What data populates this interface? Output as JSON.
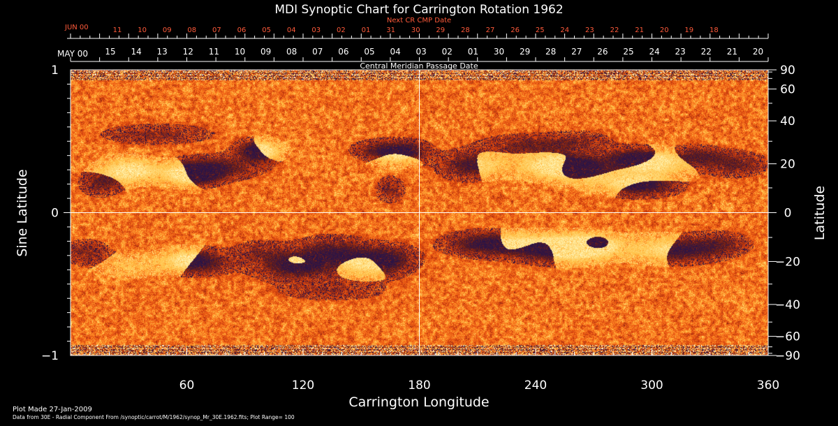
{
  "chart_data": {
    "type": "heatmap",
    "title": "MDI Synoptic Chart for Carrington Rotation 1962",
    "xlabel": "Carrington Longitude",
    "ylabel_left": "Sine Latitude",
    "ylabel_right": "Latitude",
    "xlim": [
      0,
      360
    ],
    "ylim": [
      -1,
      1
    ],
    "x_ticks": [
      60,
      120,
      180,
      240,
      300,
      360
    ],
    "x_minor_step": 10,
    "y_left_ticks": [
      {
        "v": 1,
        "label": "1"
      },
      {
        "v": 0,
        "label": "0"
      },
      {
        "v": -1,
        "label": "−1"
      }
    ],
    "y_left_minor_step": 0.1,
    "y_right_ticks": [
      {
        "deg": 90,
        "label": "90"
      },
      {
        "deg": 60,
        "label": "60"
      },
      {
        "deg": 40,
        "label": "40"
      },
      {
        "deg": 20,
        "label": "20"
      },
      {
        "deg": 0,
        "label": "0"
      },
      {
        "deg": -20,
        "label": "−20"
      },
      {
        "deg": -40,
        "label": "−40"
      },
      {
        "deg": -60,
        "label": "−60"
      },
      {
        "deg": -90,
        "label": "−90"
      }
    ],
    "y_right_minor_deg": [
      80,
      70,
      50,
      30,
      10,
      -10,
      -30,
      -50,
      -70,
      -80
    ],
    "reference_lines": {
      "x": 180,
      "y": 0
    },
    "cmp_axis": {
      "title": "Central Meridian Passage Date",
      "start_label": "MAY 00",
      "dates": [
        "15",
        "14",
        "13",
        "12",
        "11",
        "10",
        "09",
        "08",
        "07",
        "06",
        "05",
        "04",
        "03",
        "02",
        "01",
        "30",
        "29",
        "28",
        "27",
        "26",
        "25",
        "24",
        "23",
        "22",
        "21",
        "20"
      ],
      "longitudes": [
        345,
        330,
        315,
        300,
        285,
        270,
        255,
        240,
        225,
        210,
        195,
        180,
        165,
        150,
        135,
        120,
        105,
        90,
        75,
        60,
        45,
        30,
        15,
        0
      ]
    },
    "next_cr_axis": {
      "title": "Next CR CMP Date",
      "start_label": "JUN 00",
      "dates": [
        "11",
        "10",
        "09",
        "08",
        "07",
        "06",
        "05",
        "04",
        "03",
        "02",
        "01",
        "31",
        "30",
        "29",
        "28",
        "27",
        "26",
        "25",
        "24",
        "23",
        "22",
        "21",
        "20",
        "19",
        "18"
      ]
    },
    "colorscale": {
      "plot_range": 100,
      "stops": [
        "#180a4a",
        "#2a1448",
        "#6a1e16",
        "#c83a0e",
        "#ee5c14",
        "#ff8a24",
        "#ffc34a",
        "#fff0a8",
        "#ffffff"
      ]
    },
    "active_regions": [
      {
        "lon": 262,
        "lat": 0.32,
        "w": 24,
        "h": 0.12,
        "pol": -1,
        "s": 1.0
      },
      {
        "lon": 247,
        "lat": 0.33,
        "w": 26,
        "h": 0.14,
        "pol": 1,
        "s": 0.9
      },
      {
        "lon": 291,
        "lat": 0.38,
        "w": 22,
        "h": 0.1,
        "pol": -1,
        "s": 0.9
      },
      {
        "lon": 303,
        "lat": 0.34,
        "w": 24,
        "h": 0.14,
        "pol": 1,
        "s": 0.8
      },
      {
        "lon": 283,
        "lat": 0.22,
        "w": 30,
        "h": 0.12,
        "pol": 1,
        "s": 0.6
      },
      {
        "lon": 297,
        "lat": 0.18,
        "w": 24,
        "h": 0.1,
        "pol": -1,
        "s": 0.7
      },
      {
        "lon": 235,
        "lat": 0.48,
        "w": 30,
        "h": 0.1,
        "pol": -1,
        "s": 0.6
      },
      {
        "lon": 262,
        "lat": 0.5,
        "w": 24,
        "h": 0.1,
        "pol": -1,
        "s": 0.5
      },
      {
        "lon": 325,
        "lat": 0.4,
        "w": 18,
        "h": 0.1,
        "pol": -1,
        "s": 0.6
      },
      {
        "lon": 343,
        "lat": 0.34,
        "w": 22,
        "h": 0.12,
        "pol": -1,
        "s": 0.7
      },
      {
        "lon": 203,
        "lat": 0.33,
        "w": 20,
        "h": 0.14,
        "pol": -1,
        "s": 0.6
      },
      {
        "lon": 215,
        "lat": 0.34,
        "w": 20,
        "h": 0.14,
        "pol": 1,
        "s": 0.5
      },
      {
        "lon": 158,
        "lat": 0.44,
        "w": 18,
        "h": 0.1,
        "pol": -1,
        "s": 0.6
      },
      {
        "lon": 168,
        "lat": 0.4,
        "w": 18,
        "h": 0.12,
        "pol": 1,
        "s": 0.6
      },
      {
        "lon": 175,
        "lat": 0.44,
        "w": 16,
        "h": 0.1,
        "pol": -1,
        "s": 0.6
      },
      {
        "lon": 100,
        "lat": 0.44,
        "w": 16,
        "h": 0.1,
        "pol": 1,
        "s": 0.7
      },
      {
        "lon": 95,
        "lat": 0.43,
        "w": 14,
        "h": 0.1,
        "pol": -1,
        "s": 0.7
      },
      {
        "lon": 78,
        "lat": 0.32,
        "w": 30,
        "h": 0.12,
        "pol": -1,
        "s": 0.7
      },
      {
        "lon": 67,
        "lat": 0.27,
        "w": 18,
        "h": 0.1,
        "pol": -1,
        "s": 0.8
      },
      {
        "lon": 58,
        "lat": 0.27,
        "w": 20,
        "h": 0.12,
        "pol": 1,
        "s": 0.8
      },
      {
        "lon": 28,
        "lat": 0.3,
        "w": 22,
        "h": 0.14,
        "pol": 1,
        "s": 0.7
      },
      {
        "lon": 33,
        "lat": 0.29,
        "w": 16,
        "h": 0.1,
        "pol": -1,
        "s": 0.6
      },
      {
        "lon": 15,
        "lat": 0.2,
        "w": 14,
        "h": 0.12,
        "pol": -1,
        "s": 0.6
      },
      {
        "lon": 45,
        "lat": 0.55,
        "w": 40,
        "h": 0.1,
        "pol": -1,
        "s": 0.5
      },
      {
        "lon": 165,
        "lat": 0.16,
        "w": 10,
        "h": 0.12,
        "pol": -1,
        "s": 0.6
      },
      {
        "lon": 262,
        "lat": -0.25,
        "w": 26,
        "h": 0.14,
        "pol": 1,
        "s": 1.0
      },
      {
        "lon": 270,
        "lat": -0.23,
        "w": 18,
        "h": 0.1,
        "pol": -1,
        "s": 0.8
      },
      {
        "lon": 245,
        "lat": -0.25,
        "w": 28,
        "h": 0.14,
        "pol": -1,
        "s": 0.7
      },
      {
        "lon": 228,
        "lat": -0.22,
        "w": 30,
        "h": 0.12,
        "pol": 1,
        "s": 0.6
      },
      {
        "lon": 210,
        "lat": -0.22,
        "w": 26,
        "h": 0.12,
        "pol": -1,
        "s": 0.7
      },
      {
        "lon": 300,
        "lat": -0.25,
        "w": 30,
        "h": 0.14,
        "pol": 1,
        "s": 0.6
      },
      {
        "lon": 318,
        "lat": -0.27,
        "w": 26,
        "h": 0.12,
        "pol": -1,
        "s": 0.6
      },
      {
        "lon": 335,
        "lat": -0.22,
        "w": 22,
        "h": 0.12,
        "pol": -1,
        "s": 0.6
      },
      {
        "lon": 165,
        "lat": -0.33,
        "w": 20,
        "h": 0.14,
        "pol": -1,
        "s": 0.8
      },
      {
        "lon": 152,
        "lat": -0.36,
        "w": 22,
        "h": 0.14,
        "pol": 1,
        "s": 0.7
      },
      {
        "lon": 135,
        "lat": -0.27,
        "w": 26,
        "h": 0.14,
        "pol": -1,
        "s": 0.8
      },
      {
        "lon": 115,
        "lat": -0.4,
        "w": 30,
        "h": 0.12,
        "pol": -1,
        "s": 0.6
      },
      {
        "lon": 118,
        "lat": -0.35,
        "w": 22,
        "h": 0.12,
        "pol": 1,
        "s": 0.6
      },
      {
        "lon": 98,
        "lat": -0.28,
        "w": 20,
        "h": 0.12,
        "pol": -1,
        "s": 0.5
      },
      {
        "lon": 68,
        "lat": -0.35,
        "w": 22,
        "h": 0.12,
        "pol": -1,
        "s": 0.7
      },
      {
        "lon": 58,
        "lat": -0.33,
        "w": 20,
        "h": 0.12,
        "pol": 1,
        "s": 0.7
      },
      {
        "lon": 30,
        "lat": -0.38,
        "w": 22,
        "h": 0.12,
        "pol": 1,
        "s": 0.5
      },
      {
        "lon": 8,
        "lat": -0.28,
        "w": 16,
        "h": 0.12,
        "pol": -1,
        "s": 0.6
      },
      {
        "lon": 135,
        "lat": -0.55,
        "w": 40,
        "h": 0.1,
        "pol": -1,
        "s": 0.4
      }
    ]
  },
  "footer": {
    "plot_made": "Plot Made 27-Jan-2009",
    "data_source": "Data from 30E - Radial Component From /synoptic/carrot/M/1962/synop_Mr_30E.1962.fits; Plot Range=  100"
  }
}
